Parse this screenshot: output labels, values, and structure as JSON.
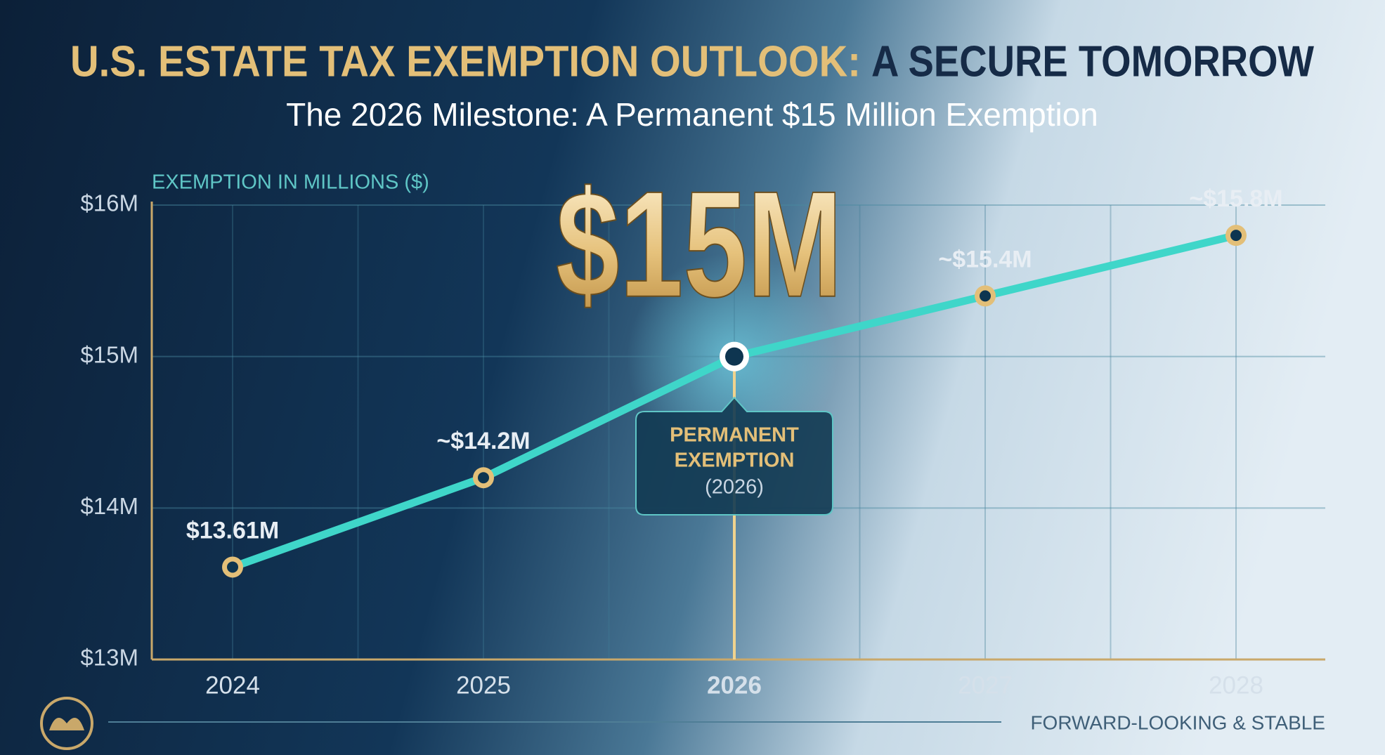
{
  "chart_data": {
    "type": "line",
    "title": [
      "U.S. ESTATE TAX EXEMPTION OUTLOOK:",
      "A SECURE TOMORROW"
    ],
    "subtitle": "The 2026 Milestone: A Permanent $15 Million Exemption",
    "y_label": "EXEMPTION IN MILLIONS ($)",
    "categories": [
      "2024",
      "2025",
      "2026",
      "2027",
      "2028"
    ],
    "values": [
      13.61,
      14.2,
      15,
      15.4,
      15.8
    ],
    "value_labels": [
      "$13.61M",
      "~$14.2M",
      "$15M",
      "~$15.4M",
      "~$15.8M"
    ],
    "highlight": 2,
    "color": "#3fd6c9",
    "ylim": [
      13,
      16
    ],
    "yticks": [
      {
        "value": 13,
        "label": "$13M"
      },
      {
        "value": 14,
        "label": "$14M"
      },
      {
        "value": 15,
        "label": "$15M"
      },
      {
        "value": 16,
        "label": "$16M"
      }
    ],
    "grid": true,
    "annotation": {
      "title": [
        "PERMANENT",
        "EXEMPTION"
      ],
      "note": "(2026)"
    },
    "footer": "FORWARD-LOOKING & STABLE"
  }
}
